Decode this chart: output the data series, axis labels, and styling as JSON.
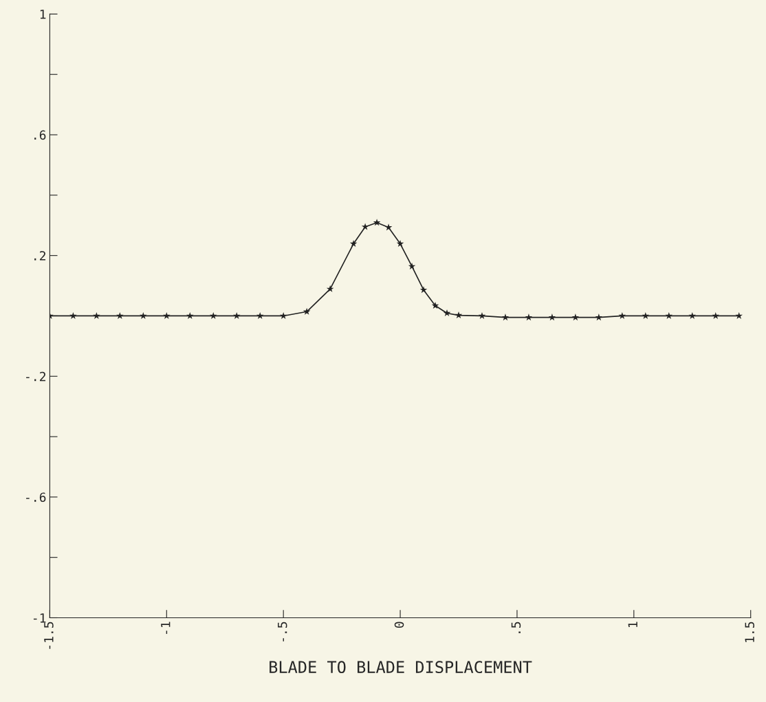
{
  "chart_data": {
    "type": "line",
    "xlabel": "BLADE TO BLADE DISPLACEMENT",
    "xlim": [
      -1.5,
      1.5
    ],
    "xticks": [
      {
        "value": -1.5,
        "label": "-1.5"
      },
      {
        "value": -1,
        "label": "-1"
      },
      {
        "value": -0.5,
        "label": "-.5"
      },
      {
        "value": 0,
        "label": "0"
      },
      {
        "value": 0.5,
        "label": ".5"
      },
      {
        "value": 1,
        "label": "1"
      },
      {
        "value": 1.5,
        "label": "1.5"
      }
    ],
    "ylim": [
      -1,
      1
    ],
    "yticks": [
      {
        "value": -1,
        "label": "-1"
      },
      {
        "value": -0.8,
        "label": null
      },
      {
        "value": -0.6,
        "label": "-.6"
      },
      {
        "value": -0.4,
        "label": null
      },
      {
        "value": -0.2,
        "label": "-.2"
      },
      {
        "value": 0,
        "label": null
      },
      {
        "value": 0.2,
        "label": ".2"
      },
      {
        "value": 0.4,
        "label": null
      },
      {
        "value": 0.6,
        "label": ".6"
      },
      {
        "value": 0.8,
        "label": null
      },
      {
        "value": 1,
        "label": "1"
      }
    ],
    "grid": false,
    "marker": "star",
    "line_style": "solid",
    "series": [
      {
        "color": "#222222",
        "x": [
          -1.5,
          -1.4,
          -1.3,
          -1.2,
          -1.1,
          -1.0,
          -0.9,
          -0.8,
          -0.7,
          -0.6,
          -0.5,
          -0.4,
          -0.3,
          -0.2,
          -0.15,
          -0.1,
          -0.05,
          0.0,
          0.05,
          0.1,
          0.15,
          0.2,
          0.25,
          0.35,
          0.45,
          0.55,
          0.65,
          0.75,
          0.85,
          0.95,
          1.05,
          1.15,
          1.25,
          1.35,
          1.45
        ],
        "values": [
          0,
          0,
          0,
          0,
          0,
          0,
          0,
          0,
          0,
          0,
          0,
          0.014,
          0.089,
          0.239,
          0.295,
          0.309,
          0.293,
          0.239,
          0.164,
          0.086,
          0.034,
          0.009,
          0.002,
          0,
          -0.005,
          -0.005,
          -0.005,
          -0.005,
          -0.005,
          0,
          0,
          0,
          0,
          0,
          0
        ]
      }
    ]
  }
}
